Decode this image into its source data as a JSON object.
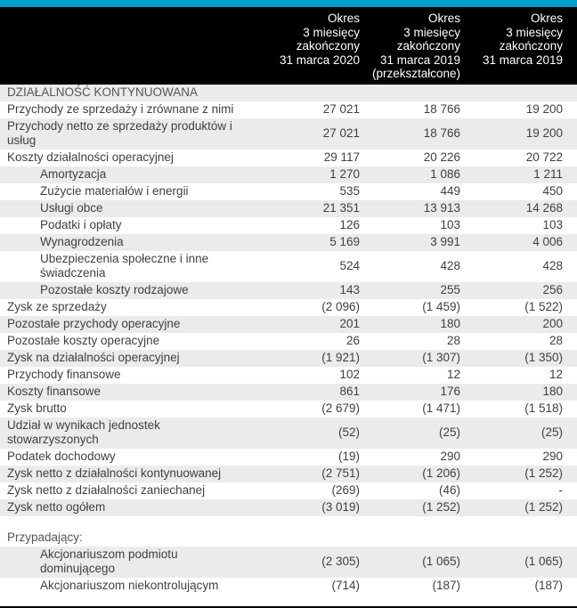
{
  "accent_color": "#009fca",
  "header": {
    "columns": [
      {
        "lines": [
          "Okres",
          "3 miesięcy",
          "zakończony",
          "31 marca 2020"
        ]
      },
      {
        "lines": [
          "Okres",
          "3 miesięcy",
          "zakończony",
          "31 marca 2019",
          "(przekształcone)"
        ]
      },
      {
        "lines": [
          "Okres",
          "3 miesięcy",
          "zakończony",
          "31 marca 2019"
        ]
      }
    ]
  },
  "table": {
    "rows": [
      {
        "label": "DZIAŁALNOŚĆ KONTYNUOWANA",
        "type": "section",
        "shaded": true,
        "values": [
          "",
          "",
          ""
        ]
      },
      {
        "label": "Przychody ze sprzedaży i zrównane z nimi",
        "shaded": false,
        "values": [
          "27 021",
          "18 766",
          "19 200"
        ]
      },
      {
        "label": "Przychody netto ze sprzedaży produktów i usług",
        "shaded": true,
        "values": [
          "27 021",
          "18 766",
          "19 200"
        ]
      },
      {
        "label": "Koszty działalności operacyjnej",
        "shaded": false,
        "values": [
          "29 117",
          "20 226",
          "20 722"
        ]
      },
      {
        "label": "Amortyzacja",
        "indent": true,
        "shaded": true,
        "values": [
          "1 270",
          "1 086",
          "1 211"
        ]
      },
      {
        "label": "Zużycie materiałów i energii",
        "indent": true,
        "shaded": false,
        "values": [
          "535",
          "449",
          "450"
        ]
      },
      {
        "label": "Usługi obce",
        "indent": true,
        "shaded": true,
        "values": [
          "21 351",
          "13 913",
          "14 268"
        ]
      },
      {
        "label": "Podatki i opłaty",
        "indent": true,
        "shaded": false,
        "values": [
          "126",
          "103",
          "103"
        ]
      },
      {
        "label": "Wynagrodzenia",
        "indent": true,
        "shaded": true,
        "values": [
          "5 169",
          "3 991",
          "4 006"
        ]
      },
      {
        "label": "Ubezpieczenia społeczne i inne świadczenia",
        "indent": true,
        "shaded": false,
        "values": [
          "524",
          "428",
          "428"
        ]
      },
      {
        "label": "Pozostałe koszty rodzajowe",
        "indent": true,
        "shaded": true,
        "values": [
          "143",
          "255",
          "256"
        ]
      },
      {
        "label": "Zysk ze sprzedaży",
        "shaded": false,
        "values": [
          "(2 096)",
          "(1 459)",
          "(1 522)"
        ]
      },
      {
        "label": "Pozostałe przychody operacyjne",
        "shaded": true,
        "values": [
          "201",
          "180",
          "200"
        ]
      },
      {
        "label": "Pozostałe koszty operacyjne",
        "shaded": false,
        "values": [
          "26",
          "28",
          "28"
        ]
      },
      {
        "label": "Zysk na działalności operacyjnej",
        "shaded": true,
        "values": [
          "(1 921)",
          "(1 307)",
          "(1 350)"
        ]
      },
      {
        "label": "Przychody finansowe",
        "shaded": false,
        "values": [
          "102",
          "12",
          "12"
        ]
      },
      {
        "label": "Koszty finansowe",
        "shaded": true,
        "values": [
          "861",
          "176",
          "180"
        ]
      },
      {
        "label": "Zysk brutto",
        "shaded": false,
        "values": [
          "(2 679)",
          "(1 471)",
          "(1 518)"
        ]
      },
      {
        "label": "Udział w wynikach jednostek stowarzyszonych",
        "shaded": true,
        "values": [
          "(52)",
          "(25)",
          "(25)"
        ]
      },
      {
        "label": "Podatek dochodowy",
        "shaded": false,
        "values": [
          "(19)",
          "290",
          "290"
        ]
      },
      {
        "label": "Zysk netto z działalności kontynuowanej",
        "shaded": true,
        "values": [
          "(2 751)",
          "(1 206)",
          "(1 252)"
        ]
      },
      {
        "label": "Zysk netto z działalności zaniechanej",
        "shaded": false,
        "values": [
          "(269)",
          "(46)",
          "-"
        ]
      },
      {
        "label": "Zysk netto ogółem",
        "shaded": true,
        "values": [
          "(3 019)",
          "(1 252)",
          "(1 252)"
        ]
      },
      {
        "type": "spacer"
      },
      {
        "label": "Przypadający:",
        "type": "section",
        "shaded": false,
        "values": [
          "",
          "",
          ""
        ]
      },
      {
        "label": "Akcjonariuszom podmiotu dominującego",
        "indent": true,
        "shaded": true,
        "values": [
          "(2 305)",
          "(1 065)",
          "(1 065)"
        ]
      },
      {
        "label": "Akcjonariuszom niekontrolującym",
        "indent": true,
        "shaded": false,
        "values": [
          "(714)",
          "(187)",
          "(187)"
        ]
      }
    ]
  }
}
